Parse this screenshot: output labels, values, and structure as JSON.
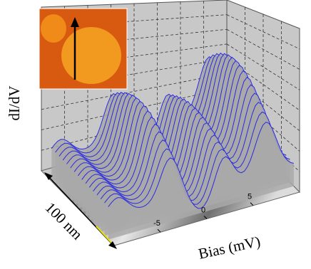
{
  "chart_data": {
    "type": "surface3d",
    "y_label": "dI/dV",
    "x_label": "Bias (mV)",
    "depth_label": "100 nm",
    "xlim": [
      -10,
      10
    ],
    "xticks": [
      -5,
      0,
      5
    ]
  }
}
